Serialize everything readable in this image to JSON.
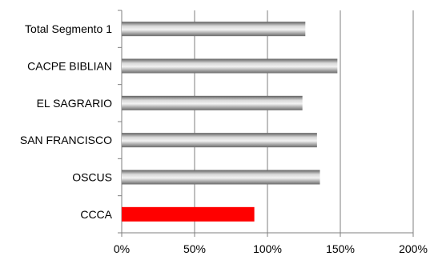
{
  "chart_data": {
    "type": "bar",
    "orientation": "horizontal",
    "categories": [
      "Total Segmento 1",
      "CACPE BIBLIAN",
      "EL SAGRARIO",
      "SAN FRANCISCO",
      "OSCUS",
      "CCCA"
    ],
    "values": [
      1.26,
      1.48,
      1.24,
      1.34,
      1.36,
      0.91
    ],
    "xlim": [
      0,
      2
    ],
    "xticks": [
      0,
      0.5,
      1.0,
      1.5,
      2.0
    ],
    "xtick_labels": [
      "0%",
      "50%",
      "100%",
      "150%",
      "200%"
    ],
    "grid": "vertical",
    "colors": {
      "default_bar": "#8c8c8c",
      "highlight_bar": "#ff0000",
      "grid": "#7f7f7f",
      "axis": "#7f7f7f"
    },
    "highlight_category": "CCCA"
  }
}
